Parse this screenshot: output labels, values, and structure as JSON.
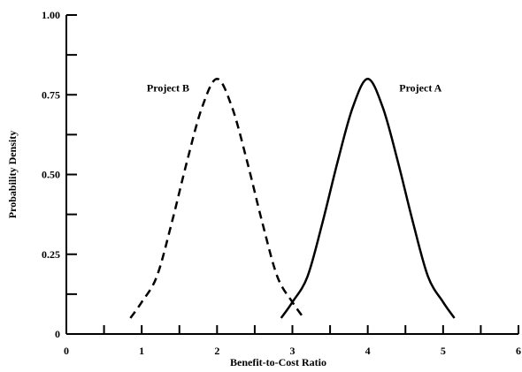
{
  "chart_data": {
    "type": "line",
    "title": "",
    "xlabel": "Benefit-to-Cost Ratio",
    "ylabel": "Probability Density",
    "xlim": [
      0,
      6
    ],
    "ylim": [
      0,
      1.0
    ],
    "x_ticks": [
      0,
      1,
      2,
      3,
      4,
      5,
      6
    ],
    "x_tick_labels": [
      "0",
      "1",
      "2",
      "3",
      "4",
      "5",
      "6"
    ],
    "x_minor_ticks": [
      0.5,
      1.5,
      2.5,
      3.5,
      4.5,
      5.5
    ],
    "y_ticks": [
      0,
      0.25,
      0.5,
      0.75,
      1.0
    ],
    "y_tick_labels": [
      "0",
      "0.25",
      "0.50",
      "0.75",
      "1.00"
    ],
    "y_minor_ticks": [
      0.125,
      0.375,
      0.625,
      0.875
    ],
    "grid": false,
    "legend": "none",
    "series": [
      {
        "name": "Project A",
        "style": "solid",
        "color": "#000000",
        "x": [
          2.85,
          3.0,
          3.2,
          3.4,
          3.6,
          3.8,
          4.0,
          4.2,
          4.4,
          4.6,
          4.8,
          5.0,
          5.15
        ],
        "y": [
          0.05,
          0.1,
          0.18,
          0.35,
          0.54,
          0.71,
          0.8,
          0.71,
          0.54,
          0.35,
          0.18,
          0.1,
          0.05
        ]
      },
      {
        "name": "Project B",
        "style": "dashed",
        "color": "#000000",
        "x": [
          0.85,
          1.0,
          1.2,
          1.4,
          1.6,
          1.8,
          2.0,
          2.2,
          2.4,
          2.6,
          2.8,
          3.0,
          3.15
        ],
        "y": [
          0.05,
          0.1,
          0.18,
          0.35,
          0.54,
          0.71,
          0.8,
          0.71,
          0.54,
          0.35,
          0.18,
          0.1,
          0.05
        ]
      }
    ],
    "annotations": [
      {
        "text": "Project A",
        "x": 4.7,
        "y": 0.76
      },
      {
        "text": "Project B",
        "x": 1.35,
        "y": 0.76
      }
    ]
  }
}
